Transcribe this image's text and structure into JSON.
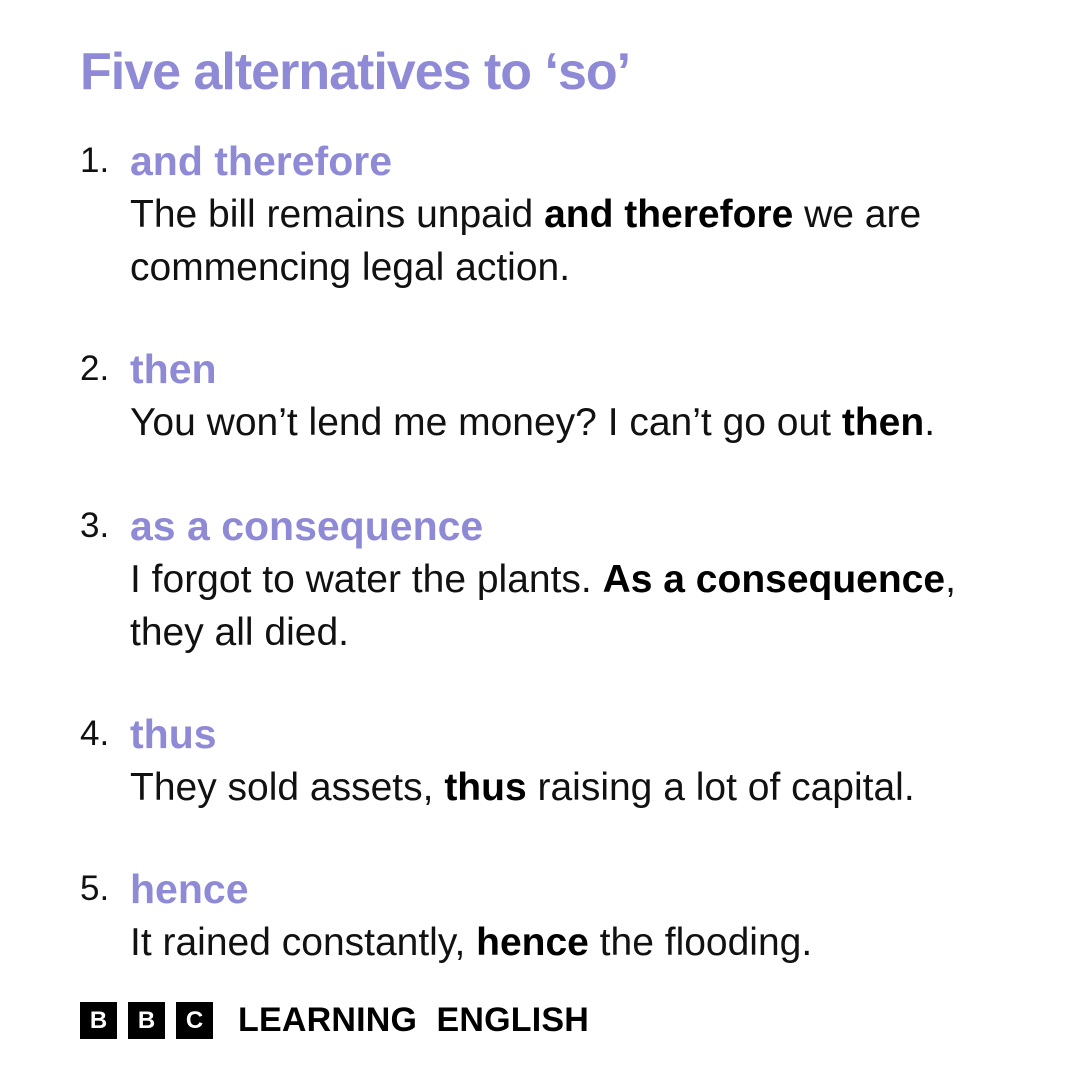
{
  "title": "Five alternatives to ‘so’",
  "items": [
    {
      "number": "1.",
      "term": "and therefore",
      "example_before": "The bill remains unpaid ",
      "example_bold": "and therefore",
      "example_after": " we are commencing legal action."
    },
    {
      "number": "2.",
      "term": "then",
      "example_before": "You won’t lend me money? I can’t go out ",
      "example_bold": "then",
      "example_after": "."
    },
    {
      "number": "3.",
      "term": "as a consequence",
      "example_before": "I forgot to water the plants. ",
      "example_bold": "As a consequence",
      "example_after": ", they all died."
    },
    {
      "number": "4.",
      "term": "thus",
      "example_before": "They sold assets, ",
      "example_bold": "thus",
      "example_after": " raising a lot of capital."
    },
    {
      "number": "5.",
      "term": "hence",
      "example_before": "It rained constantly, ",
      "example_bold": "hence",
      "example_after": " the flooding."
    }
  ],
  "footer": {
    "bbc_letters": [
      "B",
      "B",
      "C"
    ],
    "brand_text": "LEARNING  ENGLISH"
  },
  "colors": {
    "accent": "#8f8ad6",
    "text": "#111111",
    "background": "#ffffff"
  }
}
